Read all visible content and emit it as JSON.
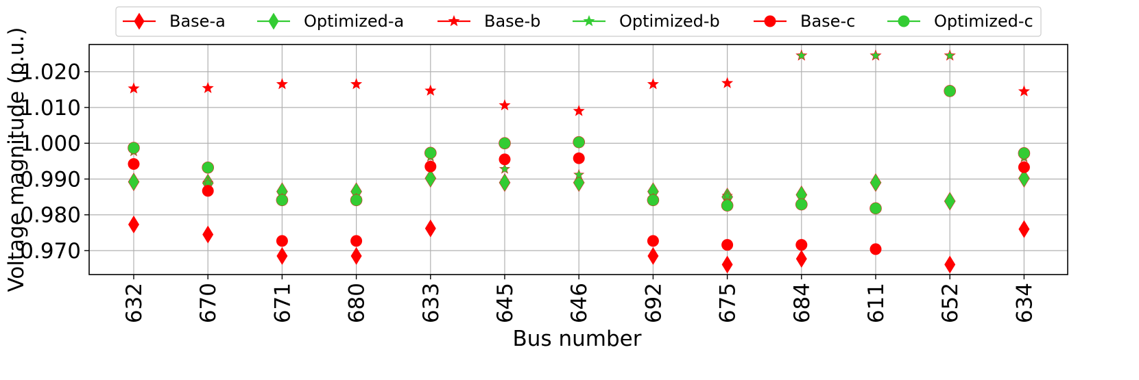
{
  "chart_data": {
    "type": "scatter",
    "xlabel": "Bus number",
    "ylabel": "Voltage magnitude (p.u.)",
    "categories": [
      "632",
      "670",
      "671",
      "680",
      "633",
      "645",
      "646",
      "692",
      "675",
      "684",
      "611",
      "652",
      "634"
    ],
    "ylim": [
      0.9633,
      1.0276
    ],
    "yticks": [
      "0.970",
      "0.980",
      "0.990",
      "1.000",
      "1.010",
      "1.020"
    ],
    "grid": true,
    "legend_position": "top-center, outside plot",
    "series": [
      {
        "name": "Base-a",
        "color": "#ff0000",
        "marker": "diamond",
        "values": [
          0.9773,
          0.9745,
          0.9685,
          0.9685,
          0.9762,
          0.989,
          0.989,
          0.9685,
          0.9661,
          0.9677,
          0.989,
          0.9661,
          0.976
        ]
      },
      {
        "name": "Optimized-a",
        "color": "#33cc33",
        "marker": "diamond",
        "values": [
          0.9892,
          0.9889,
          0.9865,
          0.9865,
          0.9902,
          0.989,
          0.989,
          0.9865,
          0.985,
          0.9856,
          0.989,
          0.9838,
          0.9902
        ]
      },
      {
        "name": "Base-b",
        "color": "#ff0000",
        "marker": "star",
        "values": [
          1.0153,
          1.0154,
          1.0165,
          1.0165,
          1.0147,
          1.0106,
          1.009,
          1.0165,
          1.0168,
          1.0245,
          1.0245,
          1.0245,
          1.0145
        ]
      },
      {
        "name": "Optimized-b",
        "color": "#33cc33",
        "marker": "star",
        "values": [
          0.9977,
          0.989,
          0.9845,
          0.9845,
          0.9962,
          0.9928,
          0.9912,
          0.9845,
          0.9853,
          1.0245,
          1.0245,
          1.0245,
          0.996
        ]
      },
      {
        "name": "Base-c",
        "color": "#ff0000",
        "marker": "circle",
        "values": [
          0.9942,
          0.9867,
          0.9727,
          0.9727,
          0.9935,
          0.9955,
          0.9958,
          0.9727,
          0.9716,
          0.9716,
          0.9704,
          1.0146,
          0.9933
        ]
      },
      {
        "name": "Optimized-c",
        "color": "#33cc33",
        "marker": "circle",
        "values": [
          0.9987,
          0.9932,
          0.9841,
          0.9841,
          0.9973,
          1.0,
          1.0003,
          0.9841,
          0.9826,
          0.9829,
          0.9818,
          1.0146,
          0.9972
        ]
      }
    ]
  }
}
